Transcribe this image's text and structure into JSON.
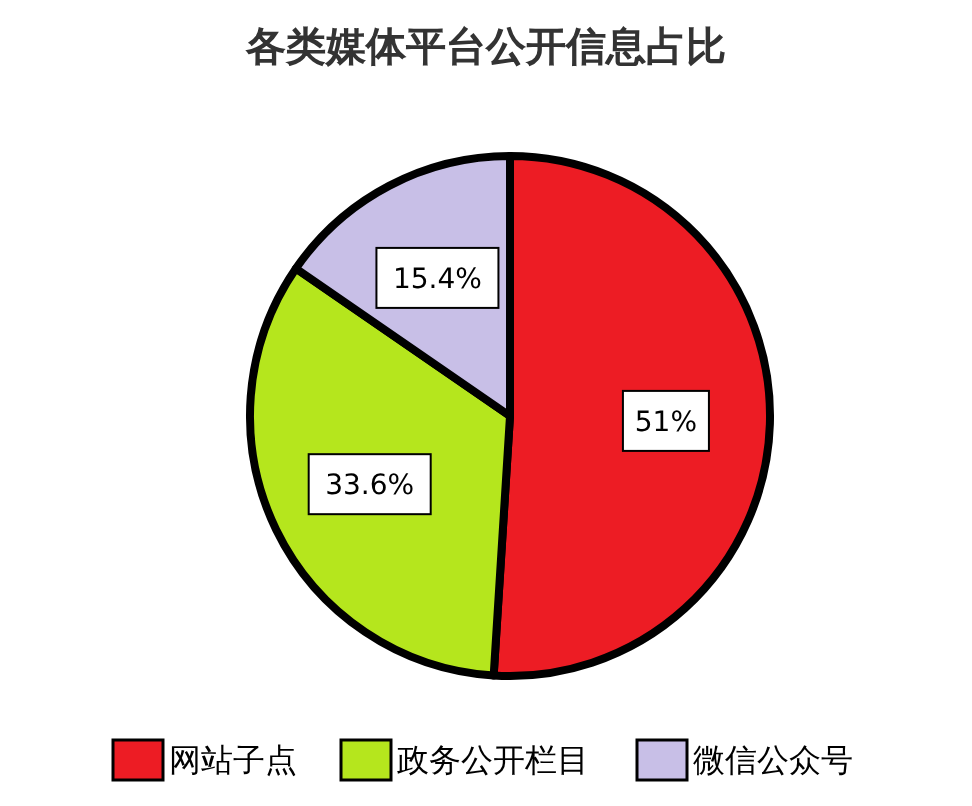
{
  "chart_data": {
    "type": "pie",
    "title": "各类媒体平台公开信息占比",
    "categories": [
      "网站子点",
      "政务公开栏目",
      "微信公众号"
    ],
    "values": [
      51,
      33.6,
      15.4
    ],
    "value_labels": [
      "51%",
      "33.6%",
      "15.4%"
    ],
    "colors": [
      "#ed1c24",
      "#b5e61d",
      "#c8bfe7"
    ],
    "legend": "bottom"
  }
}
